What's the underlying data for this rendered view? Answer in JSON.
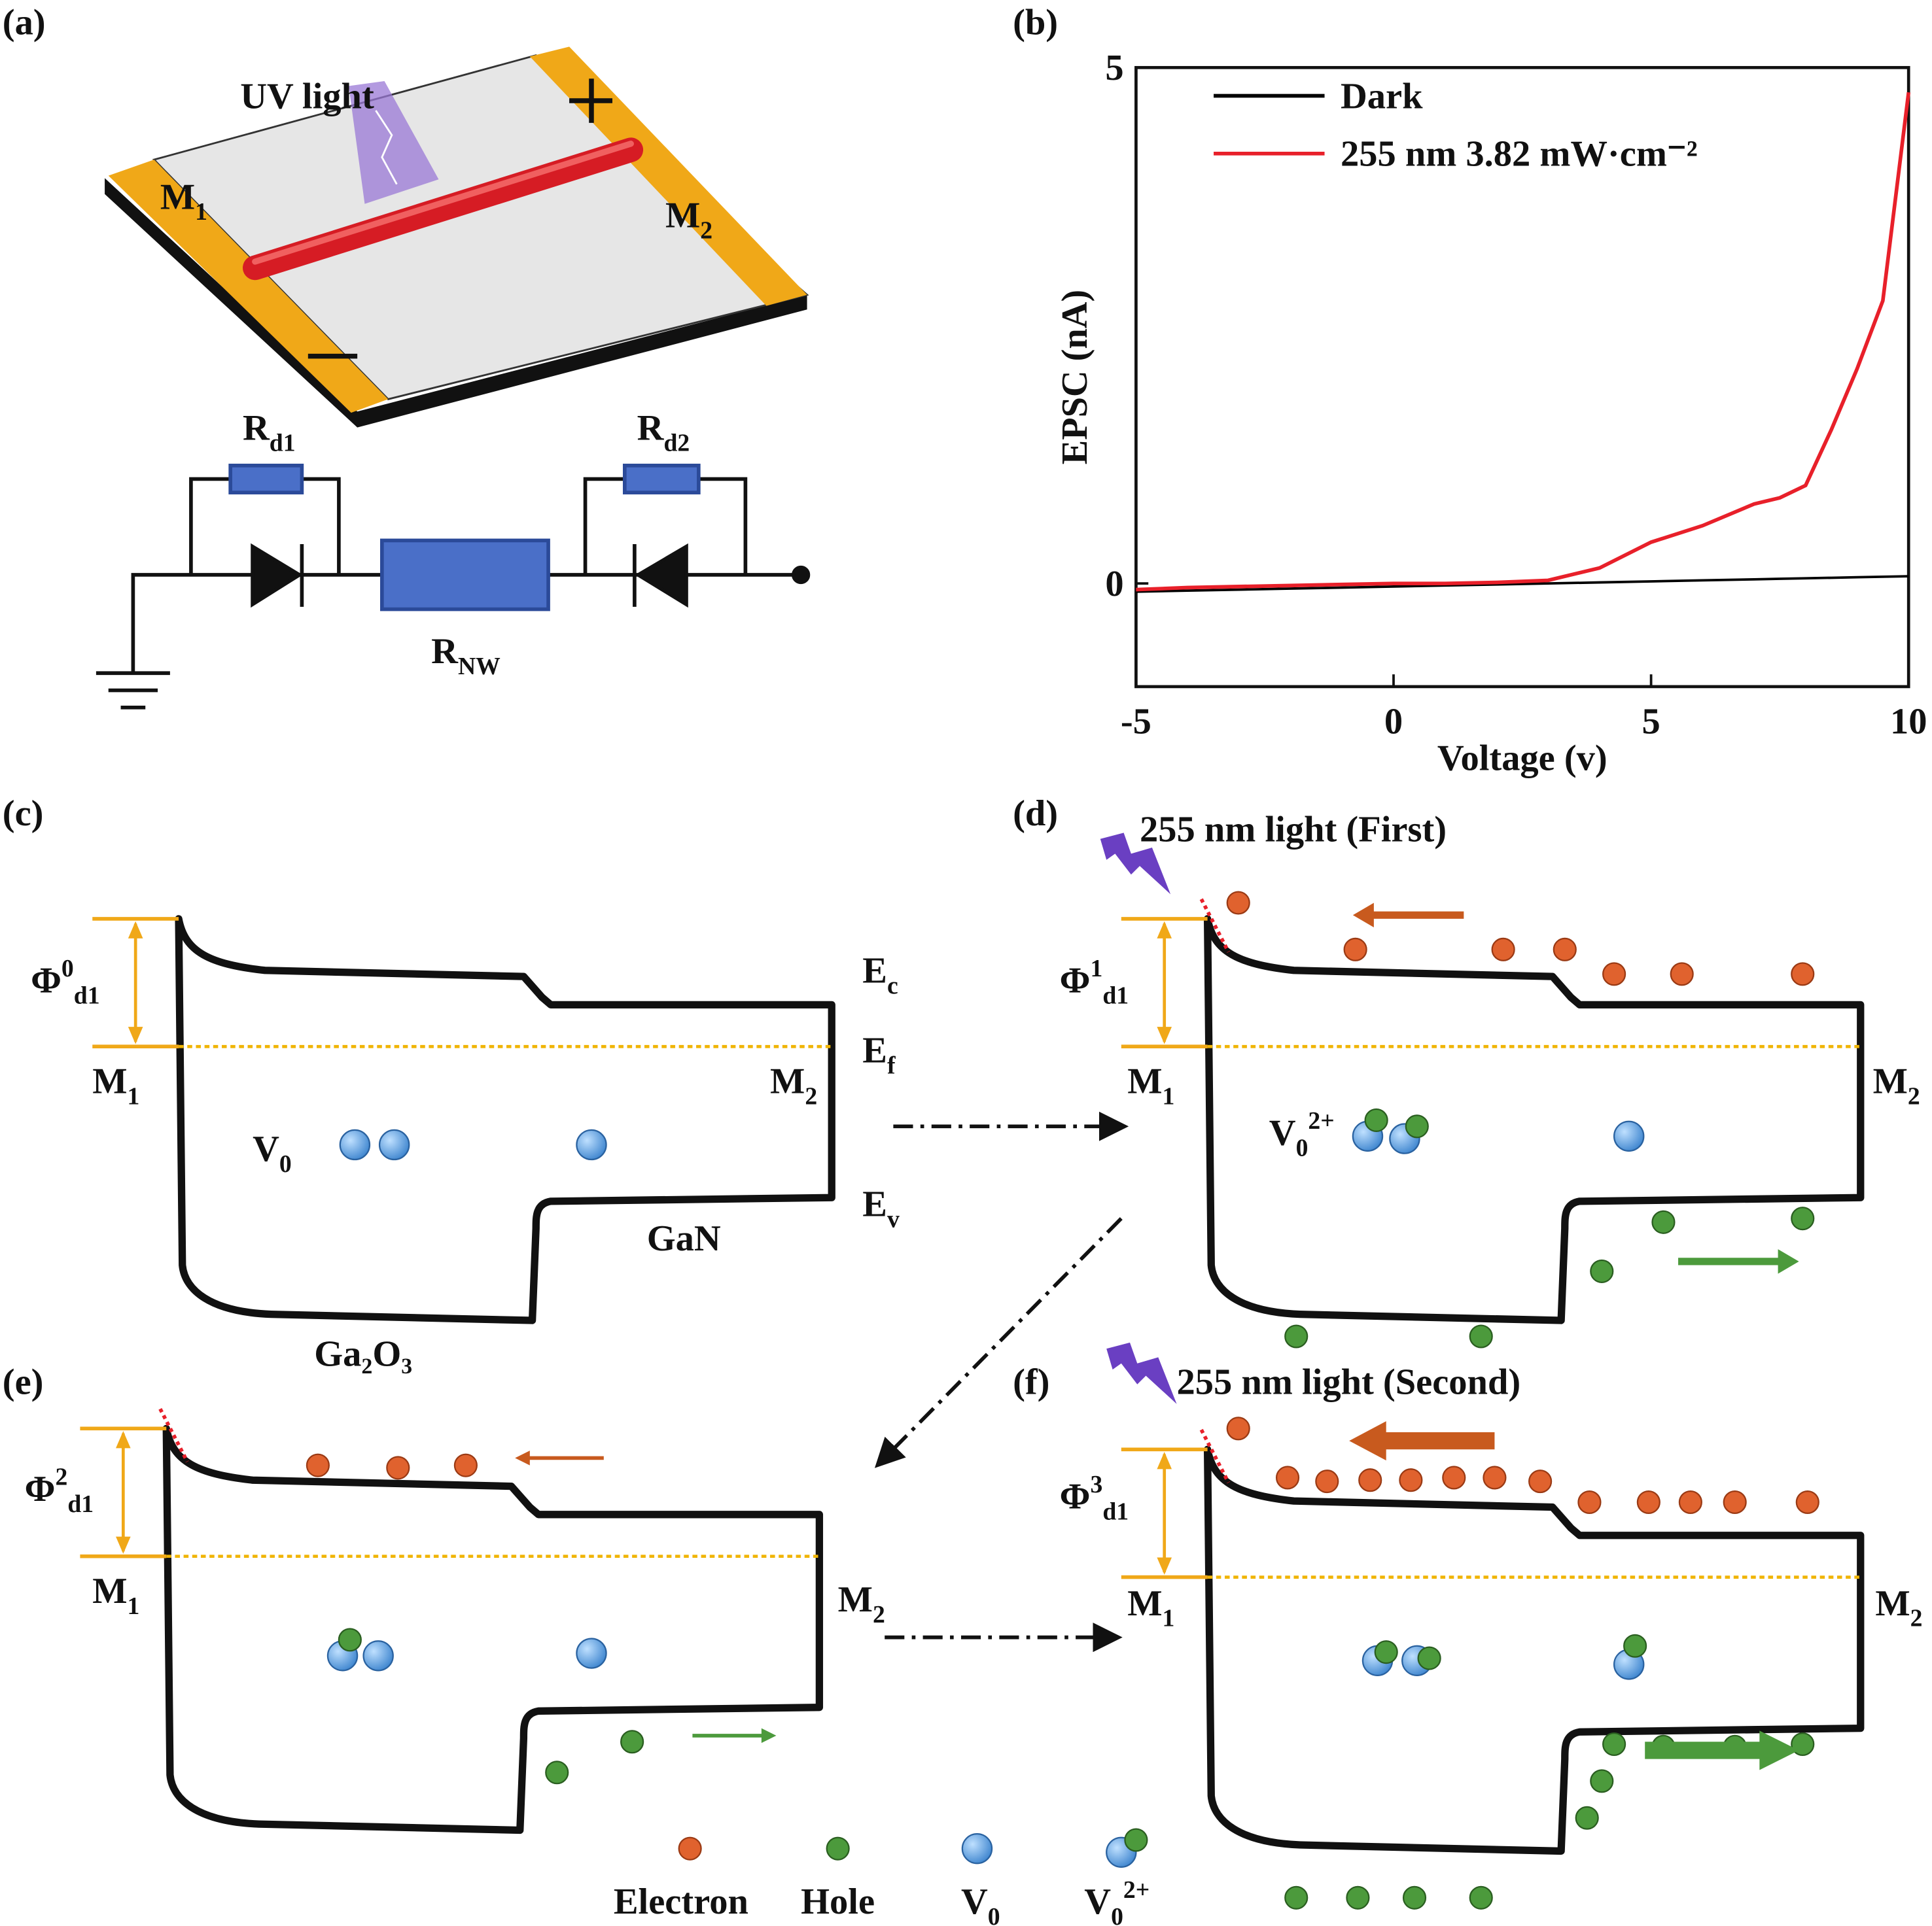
{
  "panel_labels": [
    "(a)",
    "(b)",
    "(c)",
    "(d)",
    "(e)",
    "(f)"
  ],
  "labels": [
    {
      "text": "UV light"
    },
    {
      "text": "M",
      "sub": "1"
    },
    {
      "text": "M",
      "sub": "2"
    },
    {
      "text": "R",
      "sub": "d1"
    },
    {
      "text": "R",
      "sub": "d2"
    },
    {
      "text": "R",
      "sub": "NW"
    },
    {
      "text": "Φ",
      "sup": "0",
      "sub": "d1"
    },
    {
      "text": "M",
      "sub": "1"
    },
    {
      "text": "M",
      "sub": "2"
    },
    {
      "text": "E",
      "sub": "c"
    },
    {
      "text": "E",
      "sub": "f"
    },
    {
      "text": "E",
      "sub": "v"
    },
    {
      "text": "V",
      "sub": "0"
    },
    {
      "text": "GaN"
    },
    {
      "text": "Ga₂O₃"
    },
    {
      "text": "255 nm light (First)"
    },
    {
      "text": "Φ",
      "sup": "1",
      "sub": "d1"
    },
    {
      "text": "M",
      "sub": "1"
    },
    {
      "text": "M",
      "sub": "2"
    },
    {
      "text": "V",
      "sub": "0",
      "sup": "2+"
    },
    {
      "text": "Φ",
      "sup": "2",
      "sub": "d1"
    },
    {
      "text": "M",
      "sub": "1"
    },
    {
      "text": "M",
      "sub": "2"
    },
    {
      "text": "255 nm light (Second)"
    },
    {
      "text": "Φ",
      "sup": "3",
      "sub": "d1"
    },
    {
      "text": "M",
      "sub": "1"
    },
    {
      "text": "M",
      "sub": "2"
    },
    {
      "text": "Electron"
    },
    {
      "text": "Hole"
    },
    {
      "text": "V",
      "sub": "0"
    },
    {
      "text": "V",
      "sub": "0",
      "sup": "2+"
    }
  ],
  "chart_data": {
    "type": "line",
    "xlabel": "Voltage (v)",
    "ylabel": "EPSC (nA)",
    "xlim": [
      -5,
      10
    ],
    "ylim": [
      -1,
      5
    ],
    "xticks": [
      -5,
      0,
      5,
      10
    ],
    "yticks": [
      0,
      5
    ],
    "x": [
      -5,
      -4,
      -3,
      -2,
      -1,
      0,
      1,
      2,
      3,
      4,
      5,
      6,
      7,
      7.5,
      8,
      8.5,
      9,
      9.5,
      10
    ],
    "series": [
      {
        "name": "Dark",
        "color": "#000000",
        "values": [
          -0.08,
          -0.07,
          -0.06,
          -0.05,
          -0.04,
          -0.03,
          -0.02,
          -0.01,
          0,
          0.01,
          0.02,
          0.03,
          0.04,
          0.045,
          0.05,
          0.055,
          0.06,
          0.065,
          0.07
        ]
      },
      {
        "name": "255 nm 3.82 mW·cm⁻²",
        "color": "#e8202a",
        "values": [
          -0.06,
          -0.04,
          -0.03,
          -0.02,
          -0.01,
          0,
          0,
          0.01,
          0.03,
          0.15,
          0.4,
          0.56,
          0.77,
          0.83,
          0.95,
          1.49,
          2.08,
          2.74,
          4.76
        ]
      }
    ]
  }
}
